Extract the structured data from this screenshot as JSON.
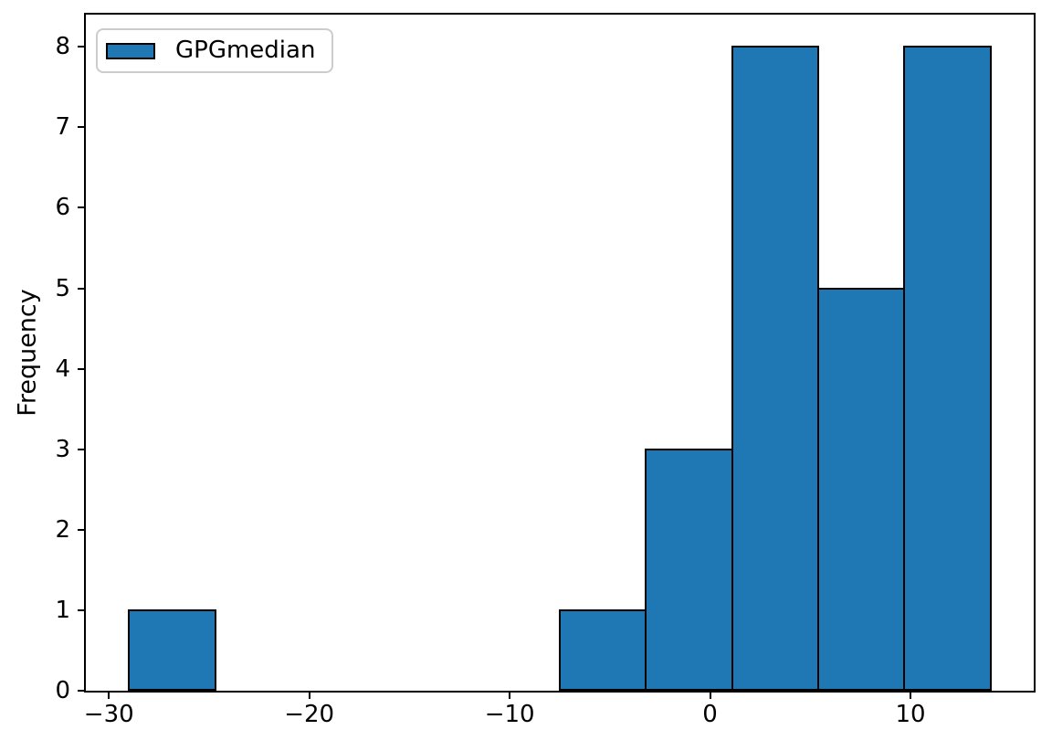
{
  "figure": {
    "background": "#ffffff"
  },
  "axes": {
    "ylabel": "Frequency",
    "xtick_labels": [
      "−30",
      "−20",
      "−10",
      "0",
      "10"
    ],
    "ytick_labels": [
      "0",
      "1",
      "2",
      "3",
      "4",
      "5",
      "6",
      "7",
      "8"
    ]
  },
  "legend": {
    "label": "GPGmedian",
    "swatch_fill": "#1f77b4",
    "swatch_edge": "#000000",
    "border_color": "#cccccc",
    "position": "upper-left"
  },
  "chart_data": {
    "type": "bar",
    "subtype": "histogram",
    "title": "",
    "xlabel": "",
    "ylabel": "Frequency",
    "series": [
      {
        "name": "GPGmedian",
        "bin_edges": [
          -29,
          -24.7,
          -20.4,
          -16.1,
          -11.8,
          -7.5,
          -3.2,
          1.1,
          5.4,
          9.7,
          14
        ],
        "counts": [
          1,
          0,
          0,
          0,
          0,
          1,
          3,
          8,
          5,
          8
        ]
      }
    ],
    "xticks": [
      -30,
      -20,
      -10,
      0,
      10
    ],
    "yticks": [
      0,
      1,
      2,
      3,
      4,
      5,
      6,
      7,
      8
    ],
    "xlim": [
      -31.15,
      16.15
    ],
    "ylim": [
      0,
      8.4
    ],
    "grid": false,
    "legend_position": "upper left",
    "bar_fill": "#1f77b4",
    "bar_edge": "#000000"
  }
}
